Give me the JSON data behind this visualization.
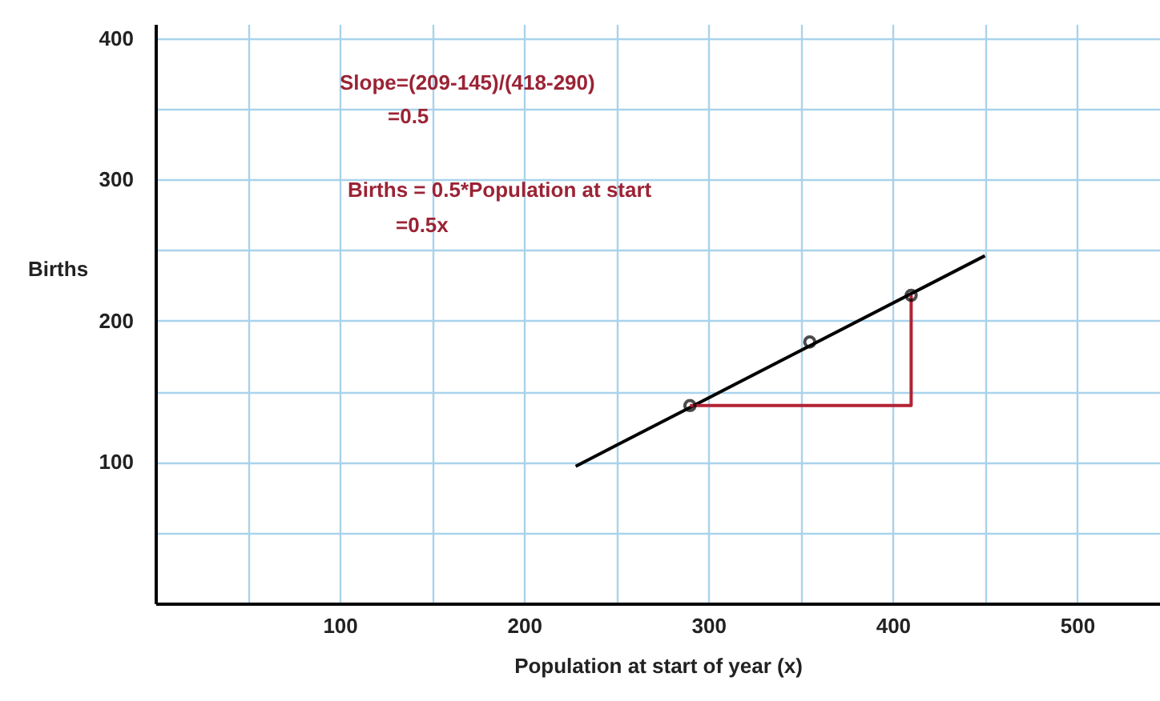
{
  "chart_data": {
    "type": "line",
    "xlabel": "Population at start of year (x)",
    "ylabel": "Births",
    "xlim": [
      0,
      545
    ],
    "ylim": [
      0,
      410
    ],
    "xticks": [
      {
        "value": 50,
        "label": null
      },
      100,
      {
        "value": 150,
        "label": null
      },
      200,
      {
        "value": 250,
        "label": null
      },
      300,
      {
        "value": 350,
        "label": null
      },
      400,
      {
        "value": 450,
        "label": null
      },
      500
    ],
    "yticks": [
      {
        "value": 50,
        "label": null
      },
      100,
      {
        "value": 150,
        "label": null
      },
      200,
      {
        "value": 250,
        "label": null
      },
      300,
      {
        "value": 350,
        "label": null
      },
      400
    ],
    "grid": true,
    "series": [
      {
        "color": "#000000",
        "x": [
          228,
          450
        ],
        "values": [
          97,
          246
        ]
      },
      {
        "color": "#b22234",
        "x": [
          290,
          410,
          410
        ],
        "values": [
          140,
          140,
          218
        ]
      },
      {
        "type": "scatter",
        "color": "#000000",
        "marker": "circle",
        "x": [
          290,
          355,
          410
        ],
        "values": [
          140,
          185,
          218
        ]
      }
    ],
    "annotations": [
      "Slope=(209-145)/(418-290)",
      "=0.5",
      "Births = 0.5*Population at start",
      "=0.5x"
    ]
  }
}
